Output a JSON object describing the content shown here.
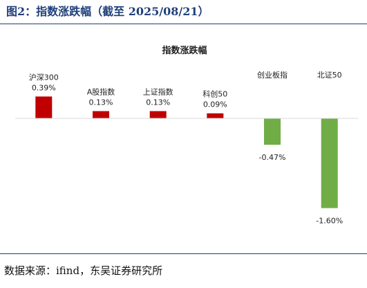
{
  "figure": {
    "title": "图2：指数涨跌幅（截至 2025/08/21）",
    "source": "数据来源：ifind，东吴证券研究所"
  },
  "chart_data": {
    "type": "bar",
    "title": "指数涨跌幅",
    "categories": [
      "沪深300",
      "A股指数",
      "上证指数",
      "科创50",
      "创业板指",
      "北证50"
    ],
    "values": [
      0.39,
      0.13,
      0.13,
      0.09,
      -0.47,
      -1.6
    ],
    "value_labels": [
      "0.39%",
      "0.13%",
      "0.13%",
      "0.09%",
      "-0.47%",
      "-1.60%"
    ],
    "unit": "%",
    "ylim": [
      -1.7,
      0.75
    ],
    "xlabel": "",
    "ylabel": "",
    "grid": false,
    "legend": "none",
    "colors": {
      "positive": "#c00000",
      "negative": "#70ad47",
      "axis": "#d9d9d9",
      "text": "#222222",
      "rule": "#1f3f7a"
    }
  }
}
